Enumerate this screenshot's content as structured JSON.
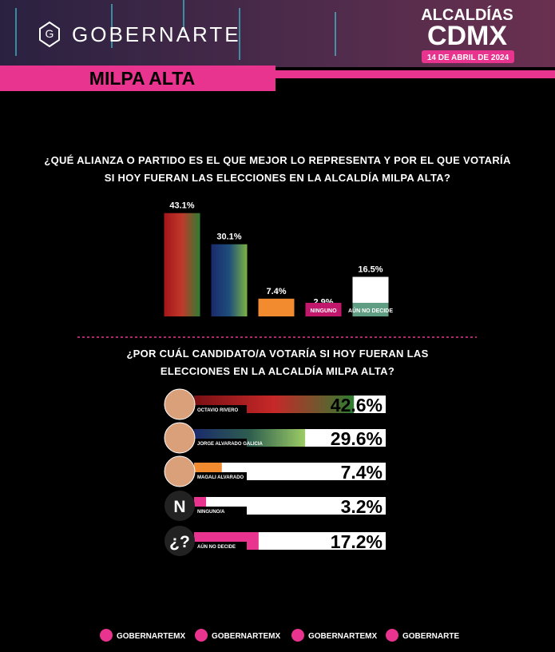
{
  "header": {
    "brand": "GOBERNARTE",
    "event": "ALCALDÍAS",
    "city": "CDMX",
    "date": "14 DE ABRIL DE 2024",
    "district": "MILPA ALTA"
  },
  "chart_data": [
    {
      "type": "bar",
      "title": "¿QUÉ ALIANZA O PARTIDO ES EL QUE MEJOR LO REPRESENTA Y POR EL QUE VOTARÍA SI HOY FUERAN LAS ELECCIONES EN LA ALCALDÍA  MILPA ALTA?",
      "categories": [
        null,
        null,
        null,
        "NINGUNO",
        "AÚN NO DECIDE"
      ],
      "values": [
        43.1,
        30.1,
        7.4,
        2.9,
        16.5
      ],
      "value_labels": [
        "43.1%",
        "30.1%",
        "7.4%",
        "2.9%",
        "16.5%"
      ],
      "colors": [
        [
          "#a4161a",
          "#c0392b",
          "#2e7d32"
        ],
        [
          "#1a2a6c",
          "#1e4d7b",
          "#7cb342"
        ],
        [
          "#f28a30"
        ],
        [
          "#ffffff"
        ],
        [
          "#ffffff"
        ]
      ]
    },
    {
      "type": "hbar",
      "title": "¿POR CUÁL CANDIDATO/A VOTARÍA SI HOY FUERAN LAS ELECCIONES EN LA ALCALDÍA MILPA ALTA?",
      "categories": [
        "OCTAVIO RIVERO",
        "JORGE ALVARADO GALICIA",
        "MAGALI ALVARADO",
        "NINGUNO/A",
        "AÚN NO DECIDE"
      ],
      "icons": [
        null,
        null,
        null,
        "N",
        "¿?"
      ],
      "values": [
        42.6,
        29.6,
        7.4,
        3.2,
        17.2
      ],
      "value_labels": [
        "42.6%",
        "29.6%",
        "7.4%",
        "3.2%",
        "17.2%"
      ],
      "colors": [
        [
          "#7a1014",
          "#c62828",
          "#2e7d32"
        ],
        [
          "#1a2a6c",
          "#2e5e4e",
          "#9ccc65"
        ],
        [
          "#f28a30"
        ],
        [
          "#e8338f"
        ],
        [
          "#e8338f"
        ]
      ]
    }
  ],
  "footer": {
    "social": [
      "GOBERNARTEMX",
      "GOBERNARTEMX",
      "GOBERNARTEMX",
      "GOBERNARTE"
    ]
  }
}
